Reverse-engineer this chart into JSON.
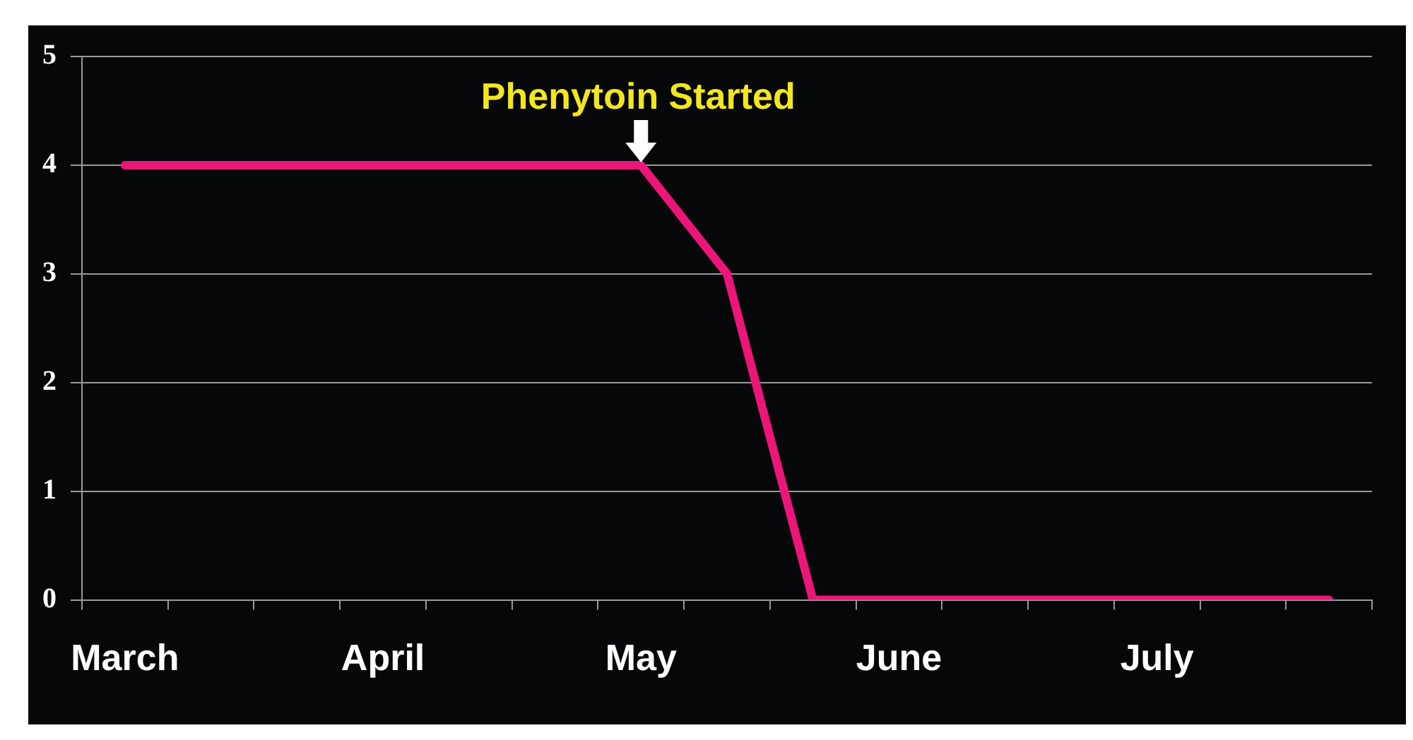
{
  "chart_data": {
    "type": "line",
    "categories": [
      "March",
      null,
      null,
      "April",
      null,
      null,
      "May",
      null,
      null,
      "June",
      null,
      null,
      "July",
      null,
      null
    ],
    "series": [
      {
        "color": "#ec1679",
        "values": [
          4,
          4,
          4,
          4,
          4,
          4,
          4,
          3,
          0,
          0,
          0,
          0,
          0,
          0,
          0
        ]
      }
    ],
    "ylim": [
      0,
      5
    ],
    "yticks": [
      0,
      1,
      2,
      3,
      4,
      5
    ],
    "grid": "y",
    "legend": false,
    "marker": "none",
    "line_style": "solid",
    "annotations": [
      {
        "text": "Phenytoin Started",
        "x": "May",
        "y": 4
      }
    ]
  }
}
